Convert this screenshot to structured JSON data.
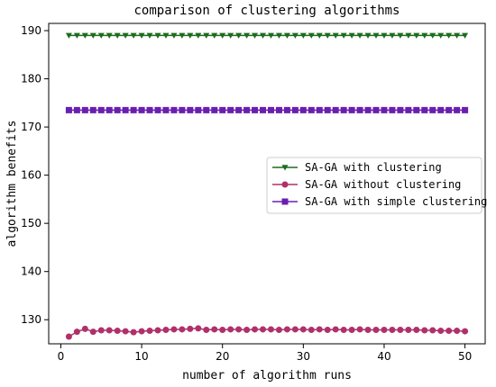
{
  "chart_data": {
    "type": "line",
    "title": "comparison of clustering algorithms",
    "xlabel": "number of algorithm runs",
    "ylabel": "algorithm benefits",
    "xlim": [
      -1.5,
      52.5
    ],
    "ylim": [
      125,
      191.5
    ],
    "xticks": [
      0,
      10,
      20,
      30,
      40,
      50
    ],
    "yticks": [
      130,
      140,
      150,
      160,
      170,
      180,
      190
    ],
    "x": [
      1,
      2,
      3,
      4,
      5,
      6,
      7,
      8,
      9,
      10,
      11,
      12,
      13,
      14,
      15,
      16,
      17,
      18,
      19,
      20,
      21,
      22,
      23,
      24,
      25,
      26,
      27,
      28,
      29,
      30,
      31,
      32,
      33,
      34,
      35,
      36,
      37,
      38,
      39,
      40,
      41,
      42,
      43,
      44,
      45,
      46,
      47,
      48,
      49,
      50
    ],
    "legend_position": "center-right",
    "grid": false,
    "series": [
      {
        "name": "SA-GA with clustering",
        "color": "#1e6b1e",
        "marker": "triangle-down",
        "values": [
          189,
          189,
          189,
          189,
          189,
          189,
          189,
          189,
          189,
          189,
          189,
          189,
          189,
          189,
          189,
          189,
          189,
          189,
          189,
          189,
          189,
          189,
          189,
          189,
          189,
          189,
          189,
          189,
          189,
          189,
          189,
          189,
          189,
          189,
          189,
          189,
          189,
          189,
          189,
          189,
          189,
          189,
          189,
          189,
          189,
          189,
          189,
          189,
          189,
          189
        ]
      },
      {
        "name": "SA-GA without clustering",
        "color": "#b0306a",
        "marker": "circle",
        "values": [
          126.5,
          127.5,
          128.1,
          127.5,
          127.8,
          127.8,
          127.7,
          127.6,
          127.4,
          127.6,
          127.7,
          127.8,
          127.9,
          128.0,
          128.0,
          128.1,
          128.2,
          127.9,
          128.0,
          127.9,
          128.0,
          128.0,
          127.9,
          128.0,
          128.0,
          128.0,
          127.9,
          128.0,
          128.0,
          128.0,
          127.9,
          128.0,
          127.9,
          128.0,
          127.9,
          127.9,
          128.0,
          127.9,
          127.9,
          127.9,
          127.9,
          127.9,
          127.9,
          127.9,
          127.8,
          127.8,
          127.7,
          127.7,
          127.7,
          127.6
        ]
      },
      {
        "name": "SA-GA with simple clustering",
        "color": "#6a1fb0",
        "marker": "square",
        "values": [
          173.5,
          173.5,
          173.5,
          173.5,
          173.5,
          173.5,
          173.5,
          173.5,
          173.5,
          173.5,
          173.5,
          173.5,
          173.5,
          173.5,
          173.5,
          173.5,
          173.5,
          173.5,
          173.5,
          173.5,
          173.5,
          173.5,
          173.5,
          173.5,
          173.5,
          173.5,
          173.5,
          173.5,
          173.5,
          173.5,
          173.5,
          173.5,
          173.5,
          173.5,
          173.5,
          173.5,
          173.5,
          173.5,
          173.5,
          173.5,
          173.5,
          173.5,
          173.5,
          173.5,
          173.5,
          173.5,
          173.5,
          173.5,
          173.5,
          173.5
        ]
      }
    ]
  }
}
